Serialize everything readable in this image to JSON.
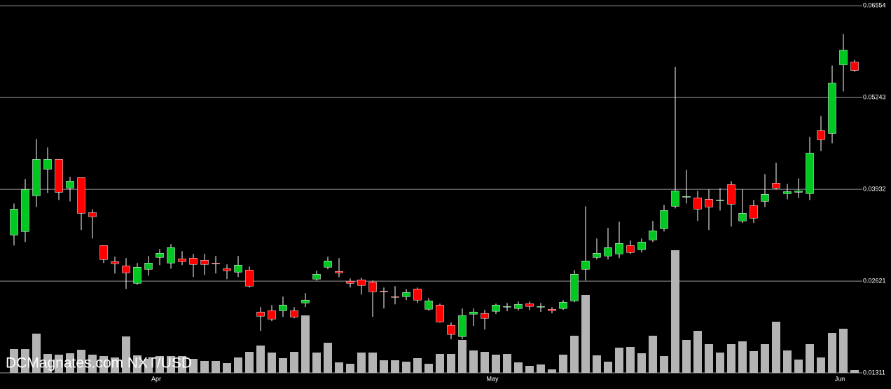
{
  "chart_data": {
    "type": "candlestick",
    "watermark": "DCMagnates.com NXT/USD",
    "categories": [
      null,
      null,
      null,
      null,
      null,
      null,
      null,
      null,
      null,
      null,
      null,
      null,
      null,
      "Apr",
      null,
      null,
      null,
      null,
      null,
      null,
      null,
      null,
      null,
      null,
      null,
      null,
      null,
      null,
      null,
      null,
      null,
      null,
      null,
      null,
      null,
      null,
      null,
      null,
      null,
      null,
      null,
      null,
      null,
      "May",
      null,
      null,
      null,
      null,
      null,
      null,
      null,
      null,
      null,
      null,
      null,
      null,
      null,
      null,
      null,
      null,
      null,
      null,
      null,
      null,
      null,
      null,
      null,
      null,
      null,
      null,
      null,
      null,
      null,
      null,
      "Jun",
      null
    ],
    "open": [
      0.0328,
      0.0333,
      0.0384,
      0.0422,
      0.0436,
      0.0395,
      0.041,
      0.036,
      0.0313,
      0.029,
      0.0284,
      0.0259,
      0.0279,
      0.0296,
      0.0288,
      0.0294,
      0.0295,
      0.0292,
      0.0288,
      0.028,
      0.0275,
      0.0278,
      0.0218,
      0.022,
      0.022,
      0.022,
      0.0231,
      0.0265,
      0.0282,
      0.0276,
      0.0262,
      0.0264,
      0.0261,
      0.0248,
      0.024,
      0.024,
      0.0251,
      0.0222,
      0.0228,
      0.0199,
      0.0183,
      0.0215,
      0.0216,
      0.0219,
      0.0225,
      0.0223,
      0.023,
      0.0225,
      0.0222,
      0.0223,
      0.0234,
      0.0279,
      0.0296,
      0.0298,
      0.0301,
      0.0313,
      0.0307,
      0.0321,
      0.0337,
      0.0369,
      0.0382,
      0.0381,
      0.0379,
      0.0377,
      0.04,
      0.0348,
      0.037,
      0.0376,
      0.0402,
      0.0387,
      0.0389,
      0.0387,
      0.0477,
      0.0473,
      0.0571,
      0.0575
    ],
    "high": [
      0.0373,
      0.0408,
      0.0465,
      0.0453,
      0.0436,
      0.0411,
      0.041,
      0.0365,
      0.0313,
      0.0297,
      0.0295,
      0.0288,
      0.0298,
      0.0308,
      0.0315,
      0.0305,
      0.0301,
      0.0301,
      0.0298,
      0.0286,
      0.0298,
      0.0283,
      0.0225,
      0.0228,
      0.024,
      0.0225,
      0.0245,
      0.0277,
      0.0297,
      0.0295,
      0.0266,
      0.0267,
      0.0263,
      0.0253,
      0.0255,
      0.0251,
      0.0253,
      0.0238,
      0.023,
      0.0203,
      0.0223,
      0.0223,
      0.0221,
      0.023,
      0.0231,
      0.0233,
      0.0233,
      0.0231,
      0.0225,
      0.0235,
      0.0278,
      0.0369,
      0.0323,
      0.0338,
      0.0347,
      0.032,
      0.0323,
      0.0348,
      0.0371,
      0.0568,
      0.0421,
      0.0391,
      0.0393,
      0.0395,
      0.0405,
      0.0393,
      0.0378,
      0.0415,
      0.0431,
      0.0401,
      0.0409,
      0.0468,
      0.0498,
      0.057,
      0.0615,
      0.0578
    ],
    "low": [
      0.0313,
      0.0318,
      0.0368,
      0.0388,
      0.0378,
      0.0376,
      0.0335,
      0.0323,
      0.0288,
      0.0273,
      0.0251,
      0.0257,
      0.027,
      0.0285,
      0.028,
      0.0285,
      0.0268,
      0.0271,
      0.0273,
      0.0265,
      0.0268,
      0.0253,
      0.0191,
      0.0205,
      0.0211,
      0.0209,
      0.0225,
      0.0263,
      0.0279,
      0.0268,
      0.0253,
      0.0243,
      0.0211,
      0.0223,
      0.0229,
      0.0235,
      0.0231,
      0.022,
      0.0203,
      0.0179,
      0.0179,
      0.0198,
      0.0193,
      0.0215,
      0.0219,
      0.022,
      0.0221,
      0.0218,
      0.0216,
      0.0221,
      0.0232,
      0.0263,
      0.0293,
      0.0293,
      0.0295,
      0.0301,
      0.0303,
      0.0318,
      0.0333,
      0.0366,
      0.0373,
      0.0348,
      0.0335,
      0.0363,
      0.034,
      0.0345,
      0.0345,
      0.0368,
      0.0393,
      0.0379,
      0.0381,
      0.0378,
      0.0448,
      0.0459,
      0.0533,
      0.0561
    ],
    "close": [
      0.0365,
      0.0393,
      0.0436,
      0.0436,
      0.0389,
      0.0405,
      0.0359,
      0.0354,
      0.0293,
      0.0287,
      0.0274,
      0.0282,
      0.0288,
      0.0302,
      0.031,
      0.029,
      0.0286,
      0.0286,
      0.0287,
      0.0277,
      0.0285,
      0.0255,
      0.0212,
      0.0208,
      0.0228,
      0.0211,
      0.0235,
      0.0272,
      0.0291,
      0.0274,
      0.0259,
      0.0256,
      0.0247,
      0.0247,
      0.0239,
      0.0246,
      0.0235,
      0.0234,
      0.0204,
      0.0186,
      0.0213,
      0.0218,
      0.0209,
      0.0228,
      0.0226,
      0.0229,
      0.0226,
      0.0226,
      0.022,
      0.0232,
      0.0272,
      0.0291,
      0.0302,
      0.031,
      0.0316,
      0.0303,
      0.0318,
      0.0334,
      0.0363,
      0.0391,
      0.0383,
      0.0365,
      0.0368,
      0.0378,
      0.0372,
      0.0359,
      0.0352,
      0.0386,
      0.0395,
      0.039,
      0.0391,
      0.0445,
      0.0464,
      0.0545,
      0.0592,
      0.0563
    ],
    "volume": [
      34,
      34,
      56,
      27,
      26,
      28,
      33,
      26,
      24,
      22,
      52,
      25,
      20,
      24,
      24,
      24,
      20,
      17,
      17,
      14,
      22,
      30,
      39,
      29,
      21,
      30,
      82,
      29,
      43,
      15,
      13,
      29,
      29,
      18,
      18,
      16,
      21,
      13,
      27,
      27,
      47,
      32,
      30,
      26,
      27,
      15,
      10,
      12,
      5,
      26,
      53,
      111,
      25,
      16,
      36,
      37,
      28,
      53,
      24,
      175,
      47,
      60,
      41,
      29,
      41,
      45,
      31,
      41,
      73,
      32,
      19,
      41,
      22,
      57,
      63,
      4
    ],
    "up_color": "#00c820",
    "down_color": "#ff0000",
    "volume_color": "#b4b4b4",
    "ylim": [
      0.01311,
      0.06636
    ],
    "yticks": [
      0.06554,
      0.05243,
      0.03932,
      0.02621,
      0.01311
    ],
    "y2lim": [
      0,
      532
    ],
    "grid": true
  }
}
